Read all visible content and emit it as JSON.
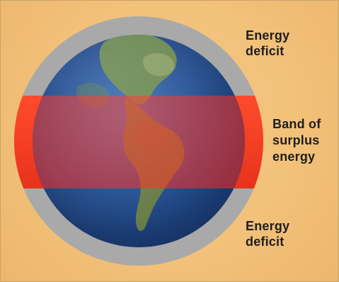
{
  "labels": {
    "top": "Energy\ndeficit",
    "middle": "Band of\nsurplus\nenergy",
    "bottom": "Energy\ndeficit"
  },
  "colors": {
    "background": "#f2c17a",
    "outer_ring": "#a9a9a9",
    "surplus_band": "#f03a1e",
    "ocean": "#234e91",
    "land": "#6f8b4e"
  },
  "regions": [
    {
      "name": "Energy deficit",
      "position": "north"
    },
    {
      "name": "Band of surplus energy",
      "position": "equatorial"
    },
    {
      "name": "Energy deficit",
      "position": "south"
    }
  ]
}
